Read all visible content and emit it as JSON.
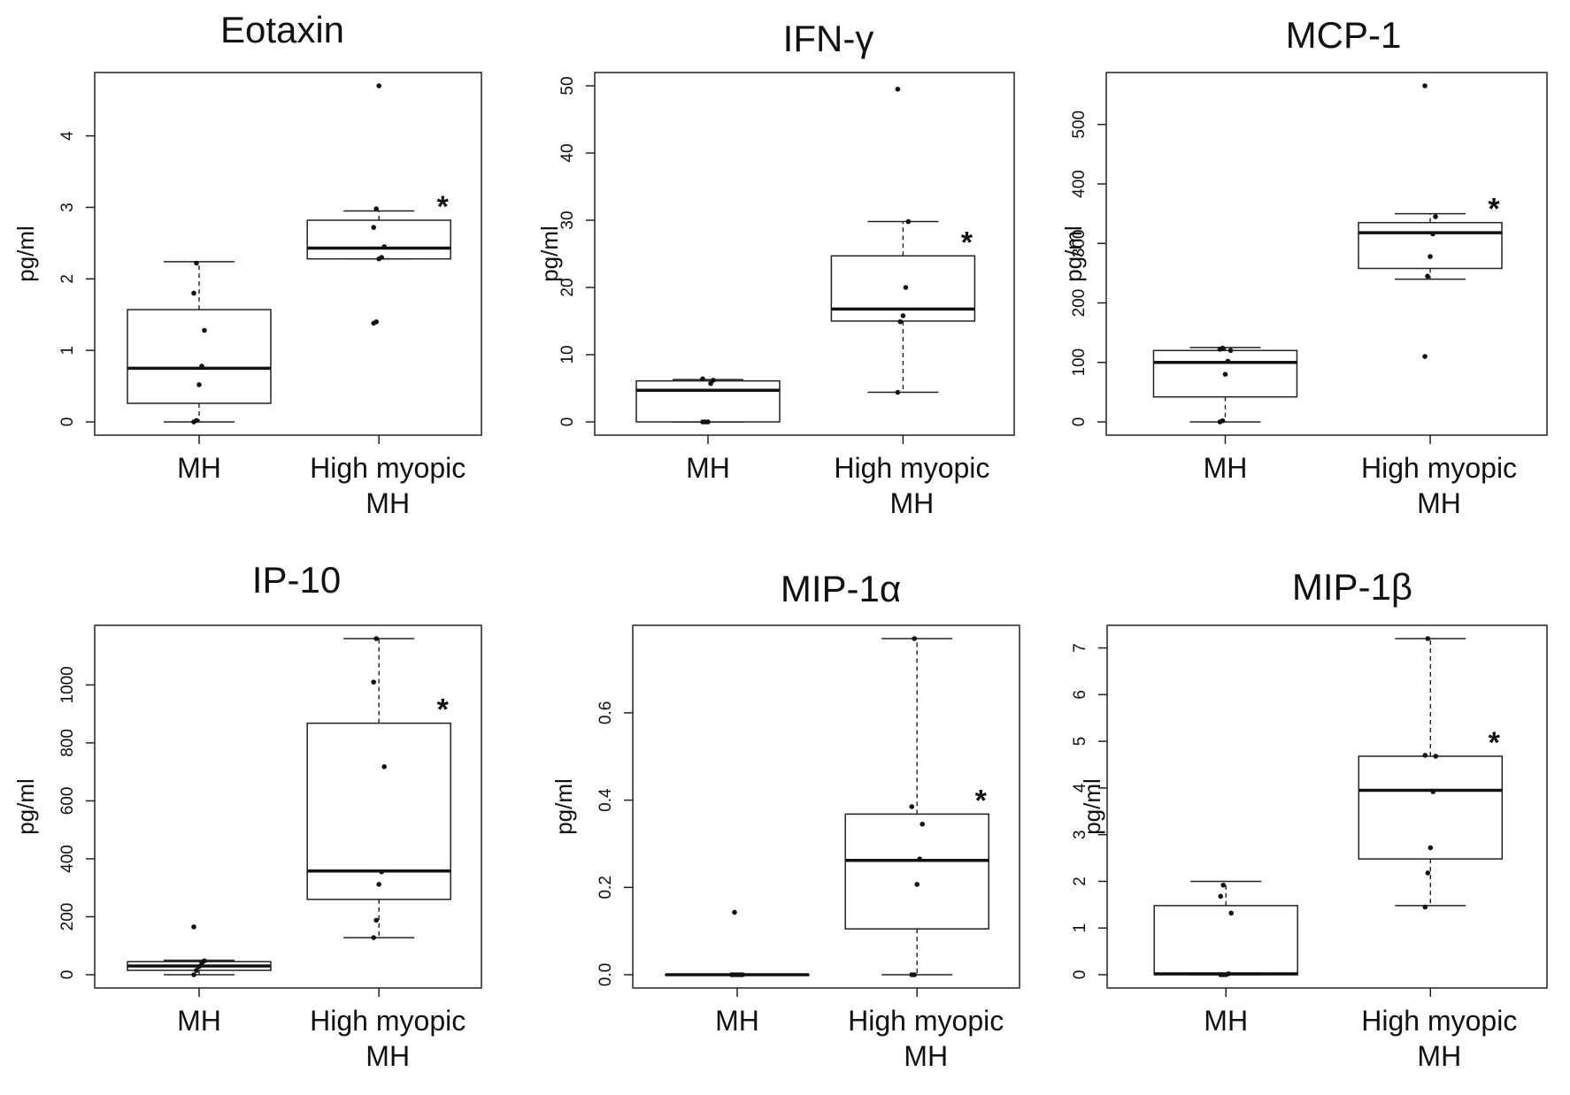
{
  "chart_data": [
    {
      "type": "box",
      "title": "Eotaxin",
      "ylabel": "pg/ml",
      "ylim": [
        0,
        4.7
      ],
      "yticks": [
        0,
        1,
        2,
        3,
        4
      ],
      "ytick_labels": [
        "0",
        "1",
        "2",
        "3",
        "4"
      ],
      "categories": [
        [
          "MH"
        ],
        [
          "High myopic",
          "MH"
        ]
      ],
      "boxes": [
        {
          "group": "MH",
          "q1": 0.26,
          "median": 0.75,
          "q3": 1.57,
          "whisker_low": 0.0,
          "whisker_high": 2.24,
          "points": [
            0.0,
            0.02,
            0.52,
            0.78,
            1.28,
            1.8,
            2.22
          ]
        },
        {
          "group": "High myopic MH",
          "q1": 2.28,
          "median": 2.43,
          "q3": 2.82,
          "whisker_low": 2.28,
          "whisker_high": 2.95,
          "points": [
            1.38,
            1.4,
            2.28,
            2.3,
            2.45,
            2.72,
            2.98,
            4.7
          ]
        }
      ],
      "significance": "*"
    },
    {
      "type": "box",
      "title": "IFN-γ",
      "ylabel": "pg/ml",
      "ylim": [
        0,
        50
      ],
      "yticks": [
        0,
        10,
        20,
        30,
        40,
        50
      ],
      "ytick_labels": [
        "0",
        "10",
        "20",
        "30",
        "40",
        "50"
      ],
      "categories": [
        [
          "MH"
        ],
        [
          "High myopic",
          "MH"
        ]
      ],
      "boxes": [
        {
          "group": "MH",
          "q1": 0.0,
          "median": 4.7,
          "q3": 6.1,
          "whisker_low": 0.0,
          "whisker_high": 6.3,
          "points": [
            0.0,
            0.0,
            0.0,
            5.7,
            6.2,
            6.4
          ]
        },
        {
          "group": "High myopic MH",
          "q1": 15.0,
          "median": 16.8,
          "q3": 24.7,
          "whisker_low": 4.4,
          "whisker_high": 29.8,
          "points": [
            4.4,
            14.9,
            15.8,
            20.0,
            29.8,
            49.5
          ]
        }
      ],
      "significance": "*"
    },
    {
      "type": "box",
      "title": "MCP-1",
      "ylabel": "pg/ml",
      "ylim": [
        0,
        565
      ],
      "yticks": [
        0,
        100,
        200,
        300,
        400,
        500
      ],
      "ytick_labels": [
        "0",
        "100",
        "200",
        "300",
        "400",
        "500"
      ],
      "categories": [
        [
          "MH"
        ],
        [
          "High myopic",
          "MH"
        ]
      ],
      "boxes": [
        {
          "group": "MH",
          "q1": 42,
          "median": 100,
          "q3": 120,
          "whisker_low": 0,
          "whisker_high": 125,
          "points": [
            0,
            2,
            80,
            102,
            120,
            122,
            124
          ]
        },
        {
          "group": "High myopic MH",
          "q1": 258,
          "median": 318,
          "q3": 335,
          "whisker_low": 240,
          "whisker_high": 350,
          "points": [
            110,
            245,
            278,
            316,
            345,
            565
          ]
        }
      ],
      "significance": "*"
    },
    {
      "type": "box",
      "title": "IP-10",
      "ylabel": "pg/ml",
      "ylim": [
        0,
        1160
      ],
      "yticks": [
        0,
        200,
        400,
        600,
        800,
        1000
      ],
      "ytick_labels": [
        "0",
        "200",
        "400",
        "600",
        "800",
        "1000"
      ],
      "categories": [
        [
          "MH"
        ],
        [
          "High myopic",
          "MH"
        ]
      ],
      "boxes": [
        {
          "group": "MH",
          "q1": 15,
          "median": 30,
          "q3": 45,
          "whisker_low": 0,
          "whisker_high": 50,
          "points": [
            0,
            15,
            28,
            40,
            48,
            165
          ]
        },
        {
          "group": "High myopic MH",
          "q1": 260,
          "median": 358,
          "q3": 868,
          "whisker_low": 128,
          "whisker_high": 1160,
          "points": [
            128,
            188,
            312,
            355,
            718,
            1010,
            1160
          ]
        }
      ],
      "significance": "*"
    },
    {
      "type": "box",
      "title": "MIP-1α",
      "ylabel": "pg/ml",
      "ylim": [
        0,
        0.77
      ],
      "yticks": [
        0.0,
        0.2,
        0.4,
        0.6
      ],
      "ytick_labels": [
        "0.0",
        "0.2",
        "0.4",
        "0.6"
      ],
      "categories": [
        [
          "MH"
        ],
        [
          "High myopic",
          "MH"
        ]
      ],
      "boxes": [
        {
          "group": "MH",
          "q1": 0.0,
          "median": 0.0,
          "q3": 0.0,
          "whisker_low": 0.0,
          "whisker_high": 0.0,
          "points": [
            0.0,
            0.0,
            0.0,
            0.0,
            0.0,
            0.0,
            0.143
          ]
        },
        {
          "group": "High myopic MH",
          "q1": 0.105,
          "median": 0.262,
          "q3": 0.368,
          "whisker_low": 0.0,
          "whisker_high": 0.77,
          "points": [
            0.0,
            0.0,
            0.207,
            0.265,
            0.345,
            0.385,
            0.77
          ]
        }
      ],
      "significance": "*"
    },
    {
      "type": "box",
      "title": "MIP-1β",
      "ylabel": "pg/ml",
      "ylim": [
        0,
        7.2
      ],
      "yticks": [
        0,
        1,
        2,
        3,
        4,
        5,
        6,
        7
      ],
      "ytick_labels": [
        "0",
        "1",
        "2",
        "3",
        "4",
        "5",
        "6",
        "7"
      ],
      "categories": [
        [
          "MH"
        ],
        [
          "High myopic",
          "MH"
        ]
      ],
      "boxes": [
        {
          "group": "MH",
          "q1": 0.0,
          "median": 0.02,
          "q3": 1.48,
          "whisker_low": 0.0,
          "whisker_high": 2.0,
          "points": [
            0.0,
            0.0,
            0.0,
            0.02,
            1.32,
            1.68,
            1.92
          ]
        },
        {
          "group": "High myopic MH",
          "q1": 2.48,
          "median": 3.95,
          "q3": 4.68,
          "whisker_low": 1.48,
          "whisker_high": 7.2,
          "points": [
            1.45,
            2.18,
            2.72,
            3.92,
            4.68,
            4.7,
            7.2
          ]
        }
      ],
      "significance": "*"
    }
  ]
}
